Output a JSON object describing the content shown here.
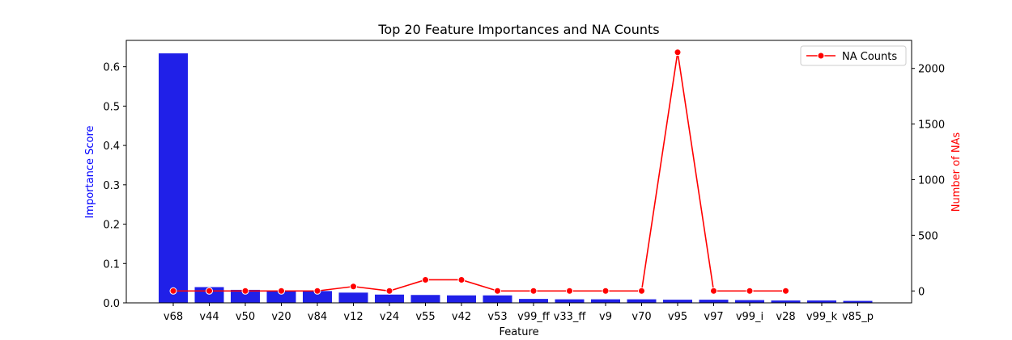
{
  "colors": {
    "bars": "#2020e8",
    "line": "#ff0000",
    "left_axis_label": "#0000ff",
    "right_axis_label": "#ff0000",
    "axes": "#000000",
    "background": "#ffffff"
  },
  "chart_data": {
    "type": "bar",
    "title": "Top 20 Feature Importances and NA Counts",
    "xlabel": "Feature",
    "ylabel": "Importance Score",
    "y2label": "Number of NAs",
    "categories": [
      "v68",
      "v44",
      "v50",
      "v20",
      "v84",
      "v12",
      "v24",
      "v55",
      "v42",
      "v53",
      "v99_ff",
      "v33_ff",
      "v9",
      "v70",
      "v95",
      "v97",
      "v99_i",
      "v28",
      "v99_k",
      "v85_p"
    ],
    "series": [
      {
        "type": "bar",
        "axis": "left",
        "values": [
          0.634,
          0.04,
          0.033,
          0.031,
          0.03,
          0.026,
          0.021,
          0.02,
          0.019,
          0.019,
          0.01,
          0.009,
          0.009,
          0.009,
          0.008,
          0.008,
          0.007,
          0.006,
          0.006,
          0.005
        ]
      },
      {
        "type": "line",
        "axis": "right",
        "name": "NA Counts",
        "values": [
          0,
          0,
          0,
          0,
          0,
          40,
          0,
          100,
          100,
          0,
          0,
          0,
          0,
          0,
          2145,
          0,
          0,
          0,
          null,
          null
        ]
      }
    ],
    "ylim": [
      0,
      0.667
    ],
    "y_ticks": [
      "0.0",
      "0.1",
      "0.2",
      "0.3",
      "0.4",
      "0.5",
      "0.6"
    ],
    "y2lim": [
      -107,
      2252
    ],
    "y2_ticks": [
      "0",
      "500",
      "1000",
      "1500",
      "2000"
    ],
    "grid": false,
    "legend_position": "upper right",
    "legend_entries": [
      "NA Counts"
    ]
  }
}
